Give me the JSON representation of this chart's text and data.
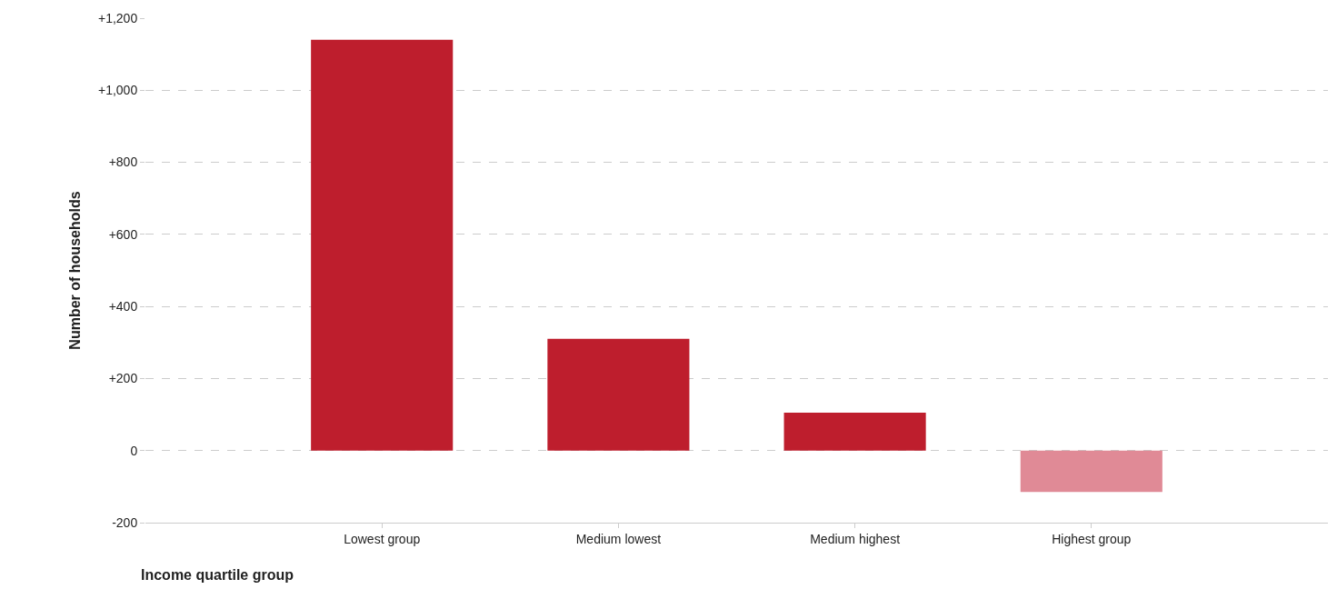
{
  "chart_data": {
    "type": "bar",
    "xlabel": "Income quartile group",
    "ylabel": "Number of households",
    "categories": [
      "Lowest group",
      "Medium lowest",
      "Medium highest",
      "Highest group"
    ],
    "values": [
      1140,
      310,
      105,
      -115
    ],
    "colors": [
      "#be1e2d",
      "#be1e2d",
      "#be1e2d",
      "#e08a96"
    ],
    "ylim": [
      -200,
      1200
    ],
    "yticks": [
      {
        "value": -200,
        "label": "-200"
      },
      0,
      {
        "value": 200,
        "label": "+200"
      },
      {
        "value": 400,
        "label": "+400"
      },
      {
        "value": 600,
        "label": "+600"
      },
      {
        "value": 800,
        "label": "+800"
      },
      {
        "value": 1000,
        "label": "+1,000"
      },
      {
        "value": 1200,
        "label": "+1,200"
      }
    ],
    "grid": "y"
  }
}
